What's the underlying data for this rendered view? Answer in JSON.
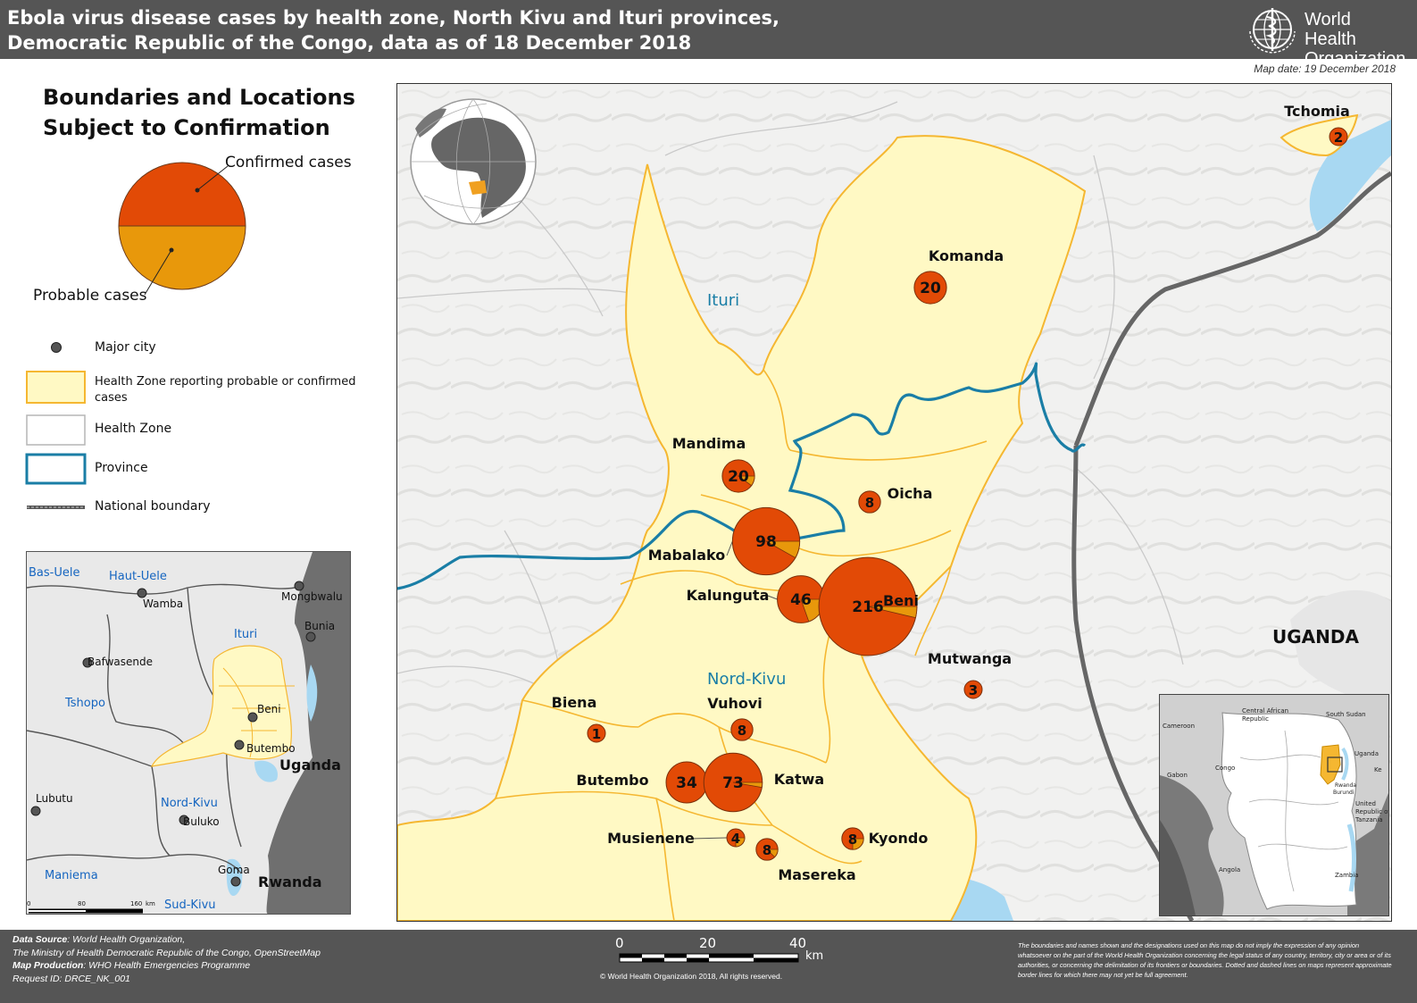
{
  "header": {
    "title": "Ebola virus disease cases by health zone, North Kivu and Ituri provinces,\nDemocratic Republic of the Congo, data as of 18 December 2018",
    "logo_line1": "World Health",
    "logo_line2": "Organization",
    "map_date": "Map date: 19 December 2018"
  },
  "legend": {
    "title_line1": "Boundaries and Locations",
    "title_line2": "Subject to Confirmation",
    "confirmed_label": "Confirmed cases",
    "probable_label": "Probable cases",
    "major_city": "Major city",
    "affected_zone": "Health Zone reporting probable or confirmed cases",
    "health_zone": "Health Zone",
    "province": "Province",
    "national_boundary": "National boundary",
    "colors": {
      "confirmed": "#e24a06",
      "probable": "#e8980b",
      "affected_fill": "#fff9c4",
      "zone_border": "#f5b731",
      "province": "#1a7ea6"
    }
  },
  "main_map": {
    "province_labels": [
      "Ituri",
      "Nord-Kivu"
    ],
    "country_label": "UGANDA",
    "zones": [
      {
        "name": "Tchomia",
        "total": 2,
        "probable": 0
      },
      {
        "name": "Komanda",
        "total": 20,
        "probable": 0
      },
      {
        "name": "Mandima",
        "total": 20,
        "probable": 2
      },
      {
        "name": "Oicha",
        "total": 8,
        "probable": 0
      },
      {
        "name": "Mabalako",
        "total": 98,
        "probable": 8
      },
      {
        "name": "Kalunguta",
        "total": 46,
        "probable": 9
      },
      {
        "name": "Beni",
        "total": 216,
        "probable": 8
      },
      {
        "name": "Mutwanga",
        "total": 3,
        "probable": 0
      },
      {
        "name": "Biena",
        "total": 1,
        "probable": 0
      },
      {
        "name": "Vuhovi",
        "total": 8,
        "probable": 0
      },
      {
        "name": "Butembo",
        "total": 34,
        "probable": 0
      },
      {
        "name": "Katwa",
        "total": 73,
        "probable": 2
      },
      {
        "name": "Musienene",
        "total": 4,
        "probable": 1
      },
      {
        "name": "Masereka",
        "total": 8,
        "probable": 1
      },
      {
        "name": "Kyondo",
        "total": 8,
        "probable": 2
      }
    ]
  },
  "inset_map": {
    "regions": [
      "Bas-Uele",
      "Haut-Uele",
      "Ituri",
      "Tshopo",
      "Nord-Kivu",
      "Maniema",
      "Sud-Kivu"
    ],
    "cities": [
      "Wamba",
      "Mongbwalu",
      "Bunia",
      "Bafwasende",
      "Beni",
      "Butembo",
      "Lubutu",
      "Buluko",
      "Goma"
    ],
    "countries": [
      "Uganda",
      "Rwanda"
    ],
    "scale": [
      "0",
      "80",
      "160",
      "km"
    ]
  },
  "overview_map": {
    "countries": [
      "Central African Republic",
      "South Sudan",
      "Cameroon",
      "Congo",
      "Gabon",
      "Uganda",
      "Ke",
      "Rwanda",
      "Burundi",
      "United Republic of Tanzania",
      "Angola",
      "Zambia"
    ]
  },
  "footer": {
    "source_label": "Data Source",
    "source_text": ": World Health Organization,",
    "source_line2": "The Ministry of Health Democratic Republic of the Congo, OpenStreetMap",
    "production_label": "Map Production",
    "production_text": ": WHO Health Emergencies Programme",
    "request": "Request ID: DRCE_NK_001",
    "scale": [
      "0",
      "20",
      "40"
    ],
    "scale_unit": "km",
    "copyright": "© World Health Organization 2018, All rights reserved.",
    "disclaimer": "The boundaries and names shown and the designations used on this map do not imply the expression of any opinion whatsoever on the part of the World Health Organization concerning the legal status of any country, territory, city or area or of its authorities, or concerning the delimitation of its frontiers or boundaries. Dotted and dashed lines on maps represent approximate border lines for which there may not yet be full agreement."
  }
}
